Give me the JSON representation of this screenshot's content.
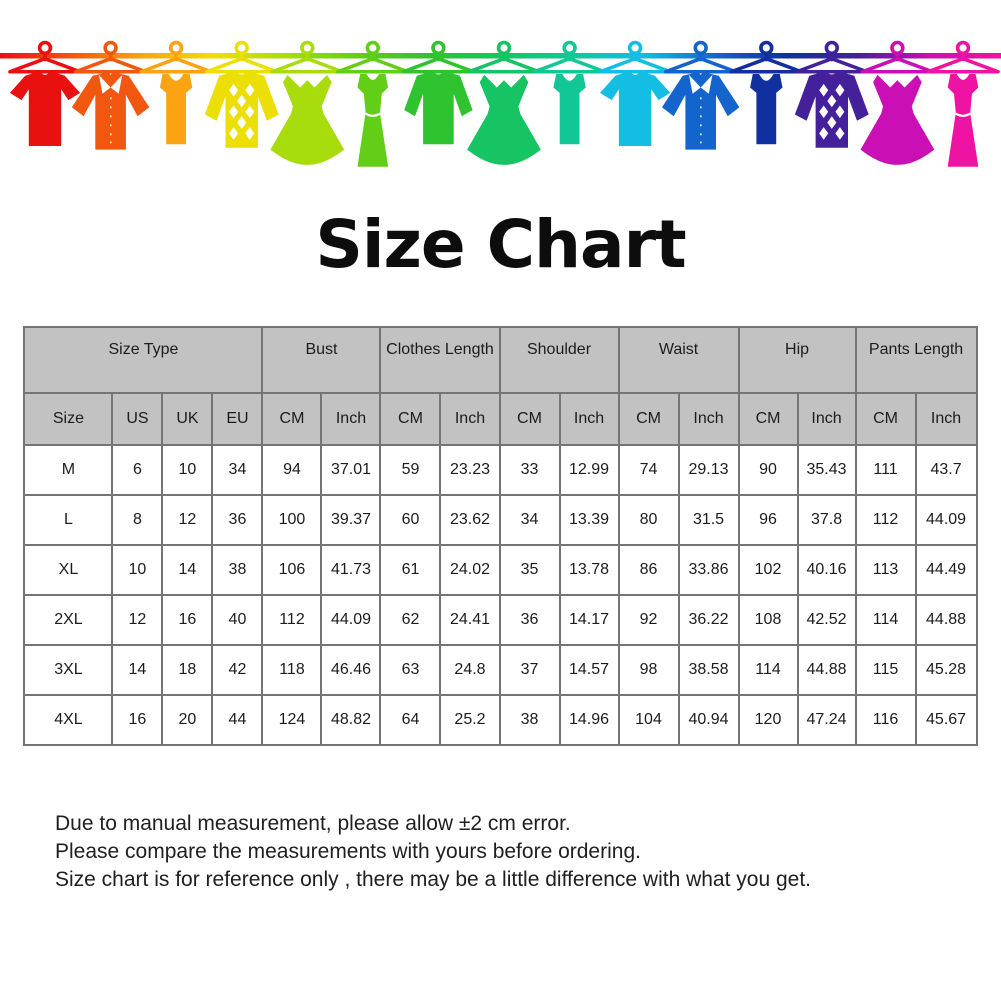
{
  "page": {
    "title": "Size Chart"
  },
  "banner": {
    "items": [
      {
        "type": "tshirt",
        "name": "red-tshirt",
        "color": "#e91010"
      },
      {
        "type": "shirt",
        "name": "orange-shirt",
        "color": "#f1570e"
      },
      {
        "type": "tank",
        "name": "amber-tank-top",
        "color": "#fca312"
      },
      {
        "type": "sweater",
        "name": "yellow-argyle-sweater",
        "color": "#ecdf05"
      },
      {
        "type": "dress",
        "name": "lime-dress",
        "color": "#a8dc0c"
      },
      {
        "type": "tankdress",
        "name": "green-tank-dress",
        "color": "#62ce18"
      },
      {
        "type": "longsleeve",
        "name": "green-longsleeve-top",
        "color": "#2fc32f"
      },
      {
        "type": "dress",
        "name": "spring-green-dress",
        "color": "#16c463"
      },
      {
        "type": "tank",
        "name": "teal-tank-top",
        "color": "#12c795"
      },
      {
        "type": "tshirt",
        "name": "cyan-tshirt",
        "color": "#14bde4"
      },
      {
        "type": "shirt",
        "name": "blue-shirt",
        "color": "#1464cd"
      },
      {
        "type": "tank",
        "name": "navy-tank-top",
        "color": "#10309f"
      },
      {
        "type": "sweater",
        "name": "purple-argyle-sweater",
        "color": "#44209b"
      },
      {
        "type": "dress",
        "name": "magenta-dress",
        "color": "#ca0fb5"
      },
      {
        "type": "tankdress",
        "name": "pink-tank-dress",
        "color": "#ef13a4"
      }
    ],
    "line_colors": [
      "#e91010",
      "#f1570e",
      "#fca312",
      "#ecdf05",
      "#a8dc0c",
      "#62ce18",
      "#2fc32f",
      "#16c463",
      "#12c795",
      "#14bde4",
      "#1464cd",
      "#10309f",
      "#44209b",
      "#ca0fb5",
      "#ef13a4"
    ]
  },
  "size_table": {
    "group_headers": [
      {
        "label": "Size Type",
        "span": 4
      },
      {
        "label": "Bust",
        "span": 2
      },
      {
        "label": "Clothes Length",
        "span": 2
      },
      {
        "label": "Shoulder",
        "span": 2
      },
      {
        "label": "Waist",
        "span": 2
      },
      {
        "label": "Hip",
        "span": 2
      },
      {
        "label": "Pants Length",
        "span": 2
      }
    ],
    "sub_headers": [
      "Size",
      "US",
      "UK",
      "EU",
      "CM",
      "Inch",
      "CM",
      "Inch",
      "CM",
      "Inch",
      "CM",
      "Inch",
      "CM",
      "Inch",
      "CM",
      "Inch"
    ],
    "rows": [
      [
        "M",
        "6",
        "10",
        "34",
        "94",
        "37.01",
        "59",
        "23.23",
        "33",
        "12.99",
        "74",
        "29.13",
        "90",
        "35.43",
        "111",
        "43.7"
      ],
      [
        "L",
        "8",
        "12",
        "36",
        "100",
        "39.37",
        "60",
        "23.62",
        "34",
        "13.39",
        "80",
        "31.5",
        "96",
        "37.8",
        "112",
        "44.09"
      ],
      [
        "XL",
        "10",
        "14",
        "38",
        "106",
        "41.73",
        "61",
        "24.02",
        "35",
        "13.78",
        "86",
        "33.86",
        "102",
        "40.16",
        "113",
        "44.49"
      ],
      [
        "2XL",
        "12",
        "16",
        "40",
        "112",
        "44.09",
        "62",
        "24.41",
        "36",
        "14.17",
        "92",
        "36.22",
        "108",
        "42.52",
        "114",
        "44.88"
      ],
      [
        "3XL",
        "14",
        "18",
        "42",
        "118",
        "46.46",
        "63",
        "24.8",
        "37",
        "14.57",
        "98",
        "38.58",
        "114",
        "44.88",
        "115",
        "45.28"
      ],
      [
        "4XL",
        "16",
        "20",
        "44",
        "124",
        "48.82",
        "64",
        "25.2",
        "38",
        "14.96",
        "104",
        "40.94",
        "120",
        "47.24",
        "116",
        "45.67"
      ]
    ]
  },
  "disclaimer": {
    "lines": [
      "Due to manual measurement, please allow ±2 cm error.",
      "Please compare the measurements with yours before ordering.",
      "Size chart is for reference only , there may be a little difference with what you get."
    ]
  }
}
